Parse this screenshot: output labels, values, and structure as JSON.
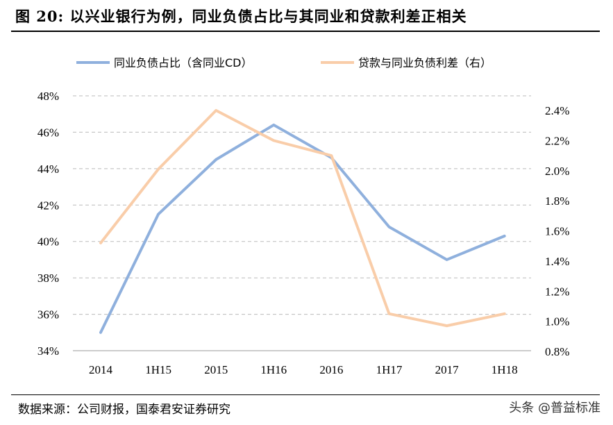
{
  "title": "图 20:   以兴业银行为例，同业负债占比与其同业和贷款利差正相关",
  "source": "数据来源：公司财报，国泰君安证券研究",
  "watermark": "头条 @普益标准",
  "chart_data": {
    "type": "line",
    "categories": [
      "2014",
      "1H15",
      "2015",
      "1H16",
      "2016",
      "1H17",
      "2017",
      "1H18"
    ],
    "series": [
      {
        "name": "同业负债占比（含同业CD）",
        "axis": "left",
        "color": "#8FB0DD",
        "values": [
          35.0,
          41.5,
          44.5,
          46.4,
          44.6,
          40.8,
          39.0,
          40.3
        ]
      },
      {
        "name": "贷款与同业负债利差（右）",
        "axis": "right",
        "color": "#F9CDA9",
        "values": [
          1.52,
          2.01,
          2.4,
          2.2,
          2.1,
          1.05,
          0.97,
          1.05
        ]
      }
    ],
    "y_left": {
      "range": [
        34,
        48
      ],
      "ticks": [
        "34%",
        "36%",
        "38%",
        "40%",
        "42%",
        "44%",
        "46%",
        "48%"
      ]
    },
    "y_right": {
      "range": [
        0.8,
        2.4
      ],
      "ticks": [
        "0.8%",
        "1.0%",
        "1.2%",
        "1.4%",
        "1.6%",
        "1.8%",
        "2.0%",
        "2.2%",
        "2.4%"
      ]
    },
    "grid": "horizontal dashed",
    "legend": "top"
  }
}
